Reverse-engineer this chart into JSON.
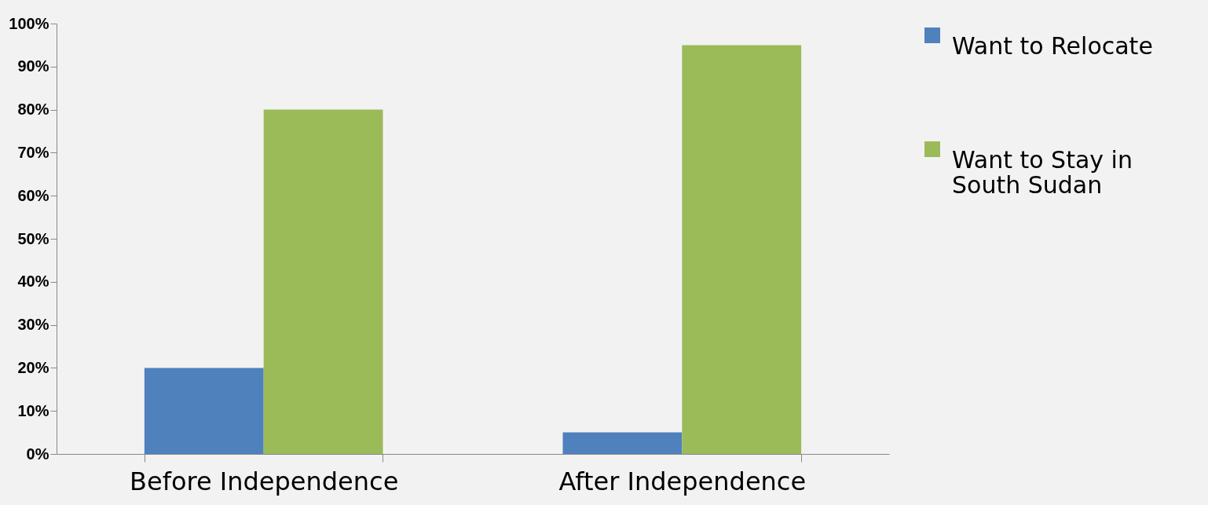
{
  "chart_data": {
    "type": "bar",
    "categories": [
      "Before Independence",
      "After Independence"
    ],
    "series": [
      {
        "name": "Want to Relocate",
        "color": "#4f81bd",
        "values": [
          20,
          5
        ]
      },
      {
        "name": "Want to Stay in South Sudan",
        "color": "#9bbb59",
        "values": [
          80,
          95
        ]
      }
    ],
    "ylim": [
      0,
      100
    ],
    "yticks": [
      {
        "value": 0,
        "label": "0%"
      },
      {
        "value": 10,
        "label": "10%"
      },
      {
        "value": 20,
        "label": "20%"
      },
      {
        "value": 30,
        "label": "30%"
      },
      {
        "value": 40,
        "label": "40%"
      },
      {
        "value": 50,
        "label": "50%"
      },
      {
        "value": 60,
        "label": "60%"
      },
      {
        "value": 70,
        "label": "70%"
      },
      {
        "value": 80,
        "label": "80%"
      },
      {
        "value": 90,
        "label": "90%"
      },
      {
        "value": 100,
        "label": "100%"
      }
    ],
    "grid": false,
    "legend": "right"
  }
}
